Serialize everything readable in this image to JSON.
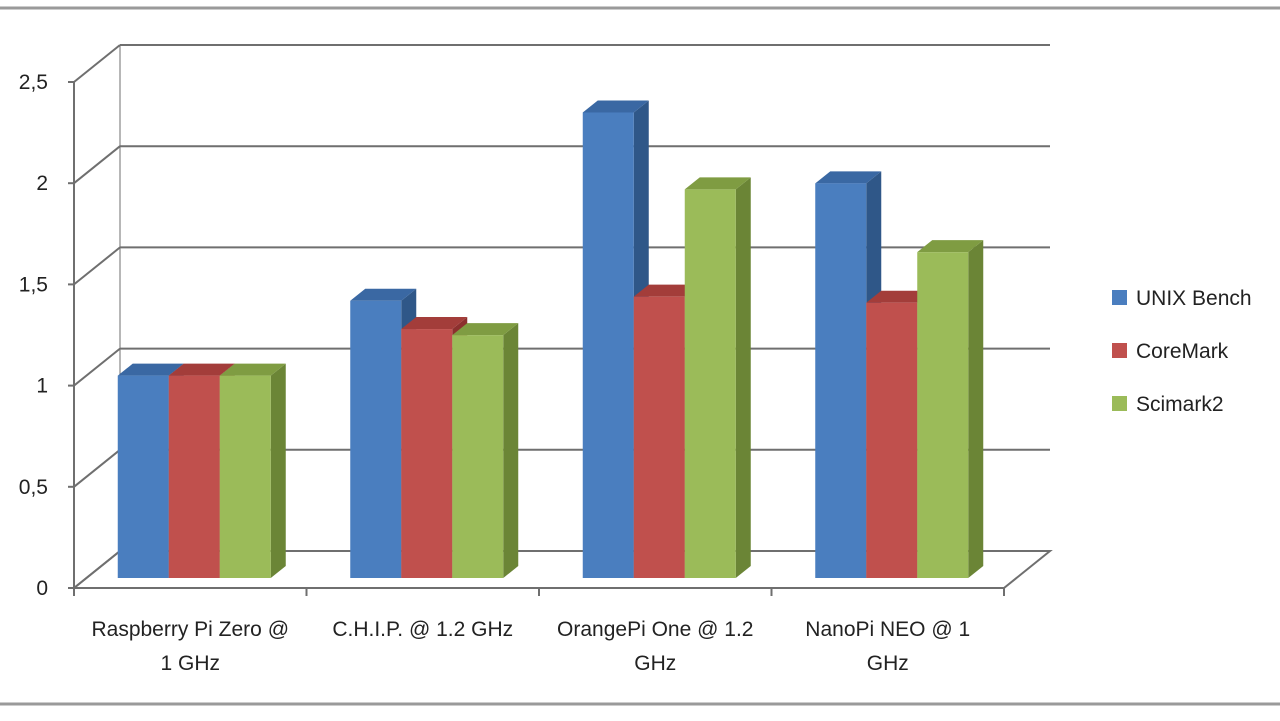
{
  "chart_data": {
    "type": "bar",
    "categories": [
      [
        "Raspberry Pi Zero @",
        "1 GHz"
      ],
      [
        "C.H.I.P.  @ 1.2 GHz"
      ],
      [
        "OrangePi One @ 1.2",
        "GHz"
      ],
      [
        "NanoPi NEO @ 1",
        "GHz"
      ]
    ],
    "series": [
      {
        "name": "UNIX Bench",
        "values": [
          1.0,
          1.37,
          2.3,
          1.95
        ],
        "color": "#4a7ebf",
        "top": "#3a68a3",
        "side": "#2f5788"
      },
      {
        "name": "CoreMark",
        "values": [
          1.0,
          1.23,
          1.39,
          1.36
        ],
        "color": "#c0504d",
        "top": "#a33d3a",
        "side": "#8c302e"
      },
      {
        "name": "Scimark2",
        "values": [
          1.0,
          1.2,
          1.92,
          1.61
        ],
        "color": "#9bbb59",
        "top": "#7f9c42",
        "side": "#6b8536"
      }
    ],
    "ylim": [
      0,
      2.5
    ],
    "yticks": [
      "0",
      "0,5",
      "1",
      "1,5",
      "2",
      "2,5"
    ],
    "grid": true,
    "legend_position": "right",
    "title": "",
    "xlabel": "",
    "ylabel": ""
  }
}
